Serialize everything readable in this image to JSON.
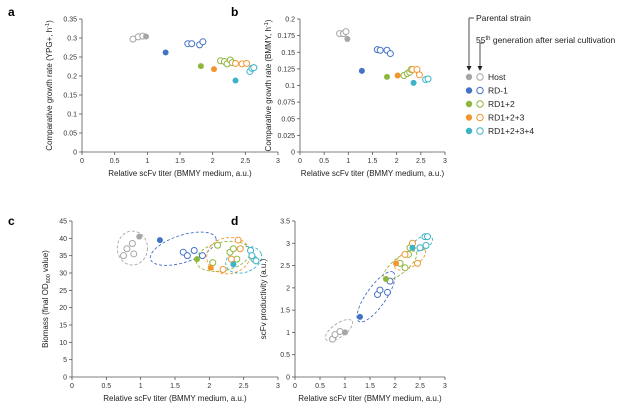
{
  "legend": {
    "parental_label": "Parental strain",
    "generation_label": "55",
    "generation_sup": "th",
    "generation_rest": " generation after serial cultivation",
    "entries": [
      {
        "label": "Host",
        "color": "#a6a6a6"
      },
      {
        "label": "RD-1",
        "color": "#4472c4"
      },
      {
        "label": "RD1+2",
        "color": "#8db63c"
      },
      {
        "label": "RD1+2+3",
        "color": "#f2962f"
      },
      {
        "label": "RD1+2+3+4",
        "color": "#3cb4c8"
      }
    ]
  },
  "chart_data": [
    {
      "panel": "a",
      "type": "scatter",
      "xlabel": "Relative scFv titer (BMMY medium, a.u.)",
      "ylabel_main": "Comparative growth rate (YPG+,  h",
      "ylabel_sup": "-1",
      "ylabel_end": ")",
      "xlim": [
        0,
        3
      ],
      "ylim": [
        0,
        0.35
      ],
      "xticks": [
        "0",
        "0.5",
        "1",
        "1.5",
        "2",
        "2.5",
        "3"
      ],
      "yticks": [
        "0",
        "0.05",
        "0.1",
        "0.15",
        "0.2",
        "0.25",
        "0.3",
        "0.35"
      ],
      "series": [
        {
          "name": "Host",
          "parental": [
            [
              0.98,
              0.304
            ]
          ],
          "evolved": [
            [
              0.78,
              0.297
            ],
            [
              0.86,
              0.303
            ],
            [
              0.93,
              0.305
            ]
          ]
        },
        {
          "name": "RD-1",
          "parental": [
            [
              1.28,
              0.262
            ]
          ],
          "evolved": [
            [
              1.62,
              0.285
            ],
            [
              1.68,
              0.285
            ],
            [
              1.8,
              0.282
            ],
            [
              1.85,
              0.29
            ]
          ]
        },
        {
          "name": "RD1+2",
          "parental": [
            [
              1.82,
              0.226
            ]
          ],
          "evolved": [
            [
              2.12,
              0.24
            ],
            [
              2.18,
              0.238
            ],
            [
              2.22,
              0.232
            ],
            [
              2.27,
              0.242
            ],
            [
              2.3,
              0.235
            ]
          ]
        },
        {
          "name": "RD1+2+3",
          "parental": [
            [
              2.02,
              0.218
            ]
          ],
          "evolved": [
            [
              2.35,
              0.233
            ],
            [
              2.45,
              0.232
            ],
            [
              2.52,
              0.233
            ]
          ]
        },
        {
          "name": "RD1+2+3+4",
          "parental": [
            [
              2.35,
              0.188
            ]
          ],
          "evolved": [
            [
              2.57,
              0.212
            ],
            [
              2.6,
              0.22
            ],
            [
              2.63,
              0.222
            ]
          ]
        }
      ]
    },
    {
      "panel": "b",
      "type": "scatter",
      "xlabel": "Relative scFv titer (BMMY medium, a.u.)",
      "ylabel_main": "Comparative growth rate (BMMY,  h",
      "ylabel_sup": "-1",
      "ylabel_end": ")",
      "xlim": [
        0,
        3
      ],
      "ylim": [
        0,
        0.2
      ],
      "xticks": [
        "0",
        "0.5",
        "1",
        "1.5",
        "2",
        "2.5",
        "3"
      ],
      "yticks": [
        "0",
        "0.025",
        "0.05",
        "0.075",
        "0.1",
        "0.125",
        "0.15",
        "0.175",
        "0.2"
      ],
      "series": [
        {
          "name": "Host",
          "parental": [
            [
              0.98,
              0.17
            ]
          ],
          "evolved": [
            [
              0.82,
              0.178
            ],
            [
              0.9,
              0.178
            ],
            [
              0.95,
              0.181
            ]
          ]
        },
        {
          "name": "RD-1",
          "parental": [
            [
              1.28,
              0.122
            ]
          ],
          "evolved": [
            [
              1.6,
              0.154
            ],
            [
              1.66,
              0.153
            ],
            [
              1.8,
              0.153
            ],
            [
              1.87,
              0.148
            ]
          ]
        },
        {
          "name": "RD1+2",
          "parental": [
            [
              1.8,
              0.113
            ]
          ],
          "evolved": [
            [
              2.15,
              0.115
            ],
            [
              2.22,
              0.118
            ],
            [
              2.27,
              0.12
            ],
            [
              2.3,
              0.124
            ]
          ]
        },
        {
          "name": "RD1+2+3",
          "parental": [
            [
              2.02,
              0.115
            ]
          ],
          "evolved": [
            [
              2.33,
              0.124
            ],
            [
              2.42,
              0.124
            ],
            [
              2.47,
              0.116
            ]
          ]
        },
        {
          "name": "RD1+2+3+4",
          "parental": [
            [
              2.35,
              0.104
            ]
          ],
          "evolved": [
            [
              2.6,
              0.109
            ],
            [
              2.65,
              0.11
            ]
          ]
        }
      ]
    },
    {
      "panel": "c",
      "type": "scatter",
      "xlabel": "Relative scFv titer (BMMY medium, a.u.)",
      "ylabel_main": "Biomass (final OD",
      "ylabel_sub": "600",
      "ylabel_end": " value)",
      "xlim": [
        0,
        3
      ],
      "ylim": [
        0,
        45
      ],
      "xticks": [
        "0",
        "0.5",
        "1",
        "1.5",
        "2",
        "2.5",
        "3"
      ],
      "yticks": [
        "0",
        "5",
        "10",
        "15",
        "20",
        "25",
        "30",
        "35",
        "40",
        "45"
      ],
      "series": [
        {
          "name": "Host",
          "parental": [
            [
              0.98,
              40.5
            ]
          ],
          "evolved": [
            [
              0.75,
              35
            ],
            [
              0.8,
              37
            ],
            [
              0.88,
              38.5
            ],
            [
              0.9,
              35.5
            ]
          ]
        },
        {
          "name": "RD-1",
          "parental": [
            [
              1.28,
              39.5
            ]
          ],
          "evolved": [
            [
              1.62,
              36
            ],
            [
              1.68,
              35
            ],
            [
              1.78,
              36.5
            ],
            [
              1.9,
              35
            ]
          ]
        },
        {
          "name": "RD1+2",
          "parental": [
            [
              1.82,
              34
            ]
          ],
          "evolved": [
            [
              2.05,
              33
            ],
            [
              2.12,
              38
            ],
            [
              2.3,
              36
            ],
            [
              2.35,
              37
            ],
            [
              2.4,
              34
            ]
          ]
        },
        {
          "name": "RD1+2+3",
          "parental": [
            [
              2.02,
              31.5
            ]
          ],
          "evolved": [
            [
              2.2,
              31
            ],
            [
              2.32,
              34
            ],
            [
              2.42,
              39.5
            ],
            [
              2.45,
              37
            ]
          ]
        },
        {
          "name": "RD1+2+3+4",
          "parental": [
            [
              2.35,
              32.5
            ]
          ],
          "evolved": [
            [
              2.6,
              36.5
            ],
            [
              2.65,
              34
            ],
            [
              2.68,
              33.5
            ],
            [
              2.62,
              35
            ]
          ]
        }
      ],
      "ellipses": [
        {
          "series": "Host",
          "cx": 0.88,
          "cy": 37.2,
          "rx": 0.22,
          "ry": 4.9,
          "rot": 0
        },
        {
          "series": "RD-1",
          "cx": 1.62,
          "cy": 37,
          "rx": 0.5,
          "ry": 3.9,
          "rot": -18
        },
        {
          "series": "RD1+2",
          "cx": 2.2,
          "cy": 34.8,
          "rx": 0.4,
          "ry": 4.1,
          "rot": -12
        },
        {
          "series": "RD1+2+3",
          "cx": 2.28,
          "cy": 35,
          "rx": 0.32,
          "ry": 5.2,
          "rot": -10
        },
        {
          "series": "RD1+2+3+4",
          "cx": 2.5,
          "cy": 33.8,
          "rx": 0.27,
          "ry": 3.6,
          "rot": -20
        }
      ]
    },
    {
      "panel": "d",
      "type": "scatter",
      "xlabel": "Relative scFv titer (BMMY medium, a.u.)",
      "ylabel_main": "scFv productivity (a.u.)",
      "xlim": [
        0,
        3
      ],
      "ylim": [
        0,
        3.5
      ],
      "xticks": [
        "0",
        "0.5",
        "1",
        "1.5",
        "2",
        "2.5",
        "3"
      ],
      "yticks": [
        "0",
        "0.5",
        "1",
        "1.5",
        "2",
        "2.5",
        "3",
        "3.5"
      ],
      "series": [
        {
          "name": "Host",
          "parental": [
            [
              1.0,
              1.0
            ]
          ],
          "evolved": [
            [
              0.75,
              0.85
            ],
            [
              0.8,
              0.95
            ],
            [
              0.9,
              1.02
            ]
          ]
        },
        {
          "name": "RD-1",
          "parental": [
            [
              1.3,
              1.35
            ]
          ],
          "evolved": [
            [
              1.65,
              1.85
            ],
            [
              1.7,
              1.95
            ],
            [
              1.85,
              1.9
            ],
            [
              1.9,
              2.15
            ]
          ]
        },
        {
          "name": "RD1+2",
          "parental": [
            [
              1.82,
              2.2
            ]
          ],
          "evolved": [
            [
              2.1,
              2.55
            ],
            [
              2.2,
              2.45
            ],
            [
              2.27,
              2.75
            ],
            [
              2.3,
              2.9
            ]
          ]
        },
        {
          "name": "RD1+2+3",
          "parental": [
            [
              2.02,
              2.55
            ]
          ],
          "evolved": [
            [
              2.2,
              2.75
            ],
            [
              2.35,
              3.0
            ],
            [
              2.45,
              2.55
            ]
          ]
        },
        {
          "name": "RD1+2+3+4",
          "parental": [
            [
              2.35,
              2.9
            ]
          ],
          "evolved": [
            [
              2.6,
              3.15
            ],
            [
              2.65,
              3.15
            ],
            [
              2.62,
              2.95
            ],
            [
              2.5,
              2.9
            ]
          ]
        }
      ],
      "ellipses": [
        {
          "series": "Host",
          "cx": 0.88,
          "cy": 1.05,
          "rx": 0.32,
          "ry": 0.15,
          "rot": -35
        },
        {
          "series": "RD-1",
          "cx": 1.62,
          "cy": 1.8,
          "rx": 0.6,
          "ry": 0.22,
          "rot": -55
        },
        {
          "series": "RD1+2",
          "cx": 2.1,
          "cy": 2.5,
          "rx": 0.42,
          "ry": 0.17,
          "rot": -40
        },
        {
          "series": "RD1+2+3",
          "cx": 2.3,
          "cy": 2.65,
          "rx": 0.35,
          "ry": 0.18,
          "rot": -30
        },
        {
          "series": "RD1+2+3+4",
          "cx": 2.55,
          "cy": 3.0,
          "rx": 0.22,
          "ry": 0.14,
          "rot": -30
        }
      ]
    }
  ]
}
